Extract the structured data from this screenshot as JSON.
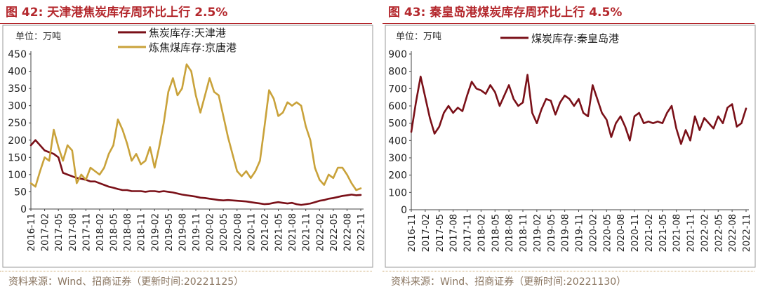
{
  "colors": {
    "title": "#b4282d",
    "coke_tianjin": "#7a1018",
    "met_jingtang": "#c9a23a",
    "coal_qhd": "#7a1018",
    "source": "#8a7560",
    "frame": "#999999"
  },
  "left": {
    "title": "图 42:  天津港焦炭库存周环比上行 2.5%",
    "unit": "单位：万吨",
    "source": "资料来源：Wind、招商证券（更新时间:20221125）"
  },
  "right": {
    "title": "图 43:  秦皇岛港煤炭库存周环比上行 4.5%",
    "unit": "单位：万吨",
    "source": "资料来源：Wind、招商证券（更新时间:20221130）"
  },
  "chart_data": [
    {
      "type": "line",
      "x_range": [
        "2016-11",
        "2022-11"
      ],
      "x_ticks": [
        "2016-11",
        "2017-02",
        "2017-05",
        "2017-08",
        "2017-11",
        "2018-02",
        "2018-05",
        "2018-08",
        "2018-11",
        "2019-02",
        "2019-05",
        "2019-08",
        "2019-11",
        "2020-02",
        "2020-05",
        "2020-08",
        "2020-11",
        "2021-02",
        "2021-05",
        "2021-08",
        "2021-11",
        "2022-02",
        "2022-05",
        "2022-08",
        "2022-11"
      ],
      "ylim": [
        0,
        450
      ],
      "y_ticks": [
        0,
        50,
        100,
        150,
        200,
        250,
        300,
        350,
        400,
        450
      ],
      "grid": false,
      "legend_position": "top",
      "series": [
        {
          "name": "焦炭库存:天津港",
          "color": "#7a1018",
          "points": [
            [
              "2016-11",
              185
            ],
            [
              "2016-12",
              200
            ],
            [
              "2017-01",
              185
            ],
            [
              "2017-02",
              170
            ],
            [
              "2017-03",
              165
            ],
            [
              "2017-04",
              160
            ],
            [
              "2017-05",
              150
            ],
            [
              "2017-06",
              105
            ],
            [
              "2017-07",
              100
            ],
            [
              "2017-08",
              95
            ],
            [
              "2017-09",
              90
            ],
            [
              "2017-10",
              88
            ],
            [
              "2017-11",
              85
            ],
            [
              "2017-12",
              80
            ],
            [
              "2018-01",
              80
            ],
            [
              "2018-02",
              75
            ],
            [
              "2018-03",
              70
            ],
            [
              "2018-04",
              65
            ],
            [
              "2018-05",
              62
            ],
            [
              "2018-06",
              58
            ],
            [
              "2018-07",
              55
            ],
            [
              "2018-08",
              55
            ],
            [
              "2018-09",
              52
            ],
            [
              "2018-10",
              52
            ],
            [
              "2018-11",
              52
            ],
            [
              "2018-12",
              50
            ],
            [
              "2019-01",
              52
            ],
            [
              "2019-02",
              52
            ],
            [
              "2019-03",
              50
            ],
            [
              "2019-04",
              52
            ],
            [
              "2019-05",
              50
            ],
            [
              "2019-06",
              48
            ],
            [
              "2019-07",
              45
            ],
            [
              "2019-08",
              42
            ],
            [
              "2019-09",
              40
            ],
            [
              "2019-10",
              38
            ],
            [
              "2019-11",
              36
            ],
            [
              "2019-12",
              33
            ],
            [
              "2020-01",
              32
            ],
            [
              "2020-02",
              30
            ],
            [
              "2020-03",
              28
            ],
            [
              "2020-04",
              26
            ],
            [
              "2020-05",
              25
            ],
            [
              "2020-06",
              26
            ],
            [
              "2020-07",
              25
            ],
            [
              "2020-08",
              24
            ],
            [
              "2020-09",
              23
            ],
            [
              "2020-10",
              22
            ],
            [
              "2020-11",
              20
            ],
            [
              "2020-12",
              18
            ],
            [
              "2021-01",
              16
            ],
            [
              "2021-02",
              14
            ],
            [
              "2021-03",
              15
            ],
            [
              "2021-04",
              18
            ],
            [
              "2021-05",
              20
            ],
            [
              "2021-06",
              18
            ],
            [
              "2021-07",
              16
            ],
            [
              "2021-08",
              18
            ],
            [
              "2021-09",
              14
            ],
            [
              "2021-10",
              12
            ],
            [
              "2021-11",
              14
            ],
            [
              "2021-12",
              16
            ],
            [
              "2022-01",
              20
            ],
            [
              "2022-02",
              24
            ],
            [
              "2022-03",
              26
            ],
            [
              "2022-04",
              30
            ],
            [
              "2022-05",
              32
            ],
            [
              "2022-06",
              35
            ],
            [
              "2022-07",
              38
            ],
            [
              "2022-08",
              40
            ],
            [
              "2022-09",
              42
            ],
            [
              "2022-10",
              40
            ],
            [
              "2022-11",
              41
            ]
          ]
        },
        {
          "name": "炼焦煤库存:京唐港",
          "color": "#c9a23a",
          "points": [
            [
              "2016-11",
              75
            ],
            [
              "2016-12",
              65
            ],
            [
              "2017-01",
              110
            ],
            [
              "2017-02",
              150
            ],
            [
              "2017-03",
              140
            ],
            [
              "2017-04",
              230
            ],
            [
              "2017-05",
              180
            ],
            [
              "2017-06",
              140
            ],
            [
              "2017-07",
              185
            ],
            [
              "2017-08",
              170
            ],
            [
              "2017-09",
              75
            ],
            [
              "2017-10",
              100
            ],
            [
              "2017-11",
              85
            ],
            [
              "2017-12",
              120
            ],
            [
              "2018-01",
              110
            ],
            [
              "2018-02",
              100
            ],
            [
              "2018-03",
              120
            ],
            [
              "2018-04",
              160
            ],
            [
              "2018-05",
              185
            ],
            [
              "2018-06",
              260
            ],
            [
              "2018-07",
              230
            ],
            [
              "2018-08",
              190
            ],
            [
              "2018-09",
              140
            ],
            [
              "2018-10",
              160
            ],
            [
              "2018-11",
              130
            ],
            [
              "2018-12",
              140
            ],
            [
              "2019-01",
              180
            ],
            [
              "2019-02",
              120
            ],
            [
              "2019-03",
              180
            ],
            [
              "2019-04",
              250
            ],
            [
              "2019-05",
              340
            ],
            [
              "2019-06",
              380
            ],
            [
              "2019-07",
              330
            ],
            [
              "2019-08",
              350
            ],
            [
              "2019-09",
              420
            ],
            [
              "2019-10",
              400
            ],
            [
              "2019-11",
              330
            ],
            [
              "2019-12",
              280
            ],
            [
              "2020-01",
              330
            ],
            [
              "2020-02",
              380
            ],
            [
              "2020-03",
              340
            ],
            [
              "2020-04",
              330
            ],
            [
              "2020-05",
              270
            ],
            [
              "2020-06",
              210
            ],
            [
              "2020-07",
              160
            ],
            [
              "2020-08",
              110
            ],
            [
              "2020-09",
              95
            ],
            [
              "2020-10",
              110
            ],
            [
              "2020-11",
              90
            ],
            [
              "2020-12",
              110
            ],
            [
              "2021-01",
              140
            ],
            [
              "2021-02",
              240
            ],
            [
              "2021-03",
              345
            ],
            [
              "2021-04",
              320
            ],
            [
              "2021-05",
              270
            ],
            [
              "2021-06",
              280
            ],
            [
              "2021-07",
              310
            ],
            [
              "2021-08",
              300
            ],
            [
              "2021-09",
              310
            ],
            [
              "2021-10",
              300
            ],
            [
              "2021-11",
              240
            ],
            [
              "2021-12",
              200
            ],
            [
              "2022-01",
              120
            ],
            [
              "2022-02",
              85
            ],
            [
              "2022-03",
              70
            ],
            [
              "2022-04",
              100
            ],
            [
              "2022-05",
              90
            ],
            [
              "2022-06",
              120
            ],
            [
              "2022-07",
              120
            ],
            [
              "2022-08",
              100
            ],
            [
              "2022-09",
              75
            ],
            [
              "2022-10",
              55
            ],
            [
              "2022-11",
              60
            ]
          ]
        }
      ]
    },
    {
      "type": "line",
      "x_range": [
        "2016-11",
        "2022-11"
      ],
      "x_ticks": [
        "2016-11",
        "2017-02",
        "2017-05",
        "2017-08",
        "2017-11",
        "2018-02",
        "2018-05",
        "2018-08",
        "2018-11",
        "2019-02",
        "2019-05",
        "2019-08",
        "2019-11",
        "2020-02",
        "2020-05",
        "2020-08",
        "2020-11",
        "2021-02",
        "2021-05",
        "2021-08",
        "2021-11",
        "2022-02",
        "2022-05",
        "2022-08",
        "2022-11"
      ],
      "ylim": [
        0,
        900
      ],
      "y_ticks": [
        0,
        100,
        200,
        300,
        400,
        500,
        600,
        700,
        800,
        900
      ],
      "grid": false,
      "legend_position": "top",
      "series": [
        {
          "name": "煤炭库存:秦皇岛港",
          "color": "#7a1018",
          "points": [
            [
              "2016-11",
              450
            ],
            [
              "2016-12",
              620
            ],
            [
              "2017-01",
              770
            ],
            [
              "2017-02",
              650
            ],
            [
              "2017-03",
              530
            ],
            [
              "2017-04",
              440
            ],
            [
              "2017-05",
              480
            ],
            [
              "2017-06",
              560
            ],
            [
              "2017-07",
              600
            ],
            [
              "2017-08",
              560
            ],
            [
              "2017-09",
              590
            ],
            [
              "2017-10",
              570
            ],
            [
              "2017-11",
              660
            ],
            [
              "2017-12",
              740
            ],
            [
              "2018-01",
              700
            ],
            [
              "2018-02",
              690
            ],
            [
              "2018-03",
              670
            ],
            [
              "2018-04",
              720
            ],
            [
              "2018-05",
              680
            ],
            [
              "2018-06",
              600
            ],
            [
              "2018-07",
              660
            ],
            [
              "2018-08",
              720
            ],
            [
              "2018-09",
              640
            ],
            [
              "2018-10",
              600
            ],
            [
              "2018-11",
              620
            ],
            [
              "2018-12",
              780
            ],
            [
              "2019-01",
              560
            ],
            [
              "2019-02",
              500
            ],
            [
              "2019-03",
              580
            ],
            [
              "2019-04",
              640
            ],
            [
              "2019-05",
              630
            ],
            [
              "2019-06",
              550
            ],
            [
              "2019-07",
              620
            ],
            [
              "2019-08",
              660
            ],
            [
              "2019-09",
              640
            ],
            [
              "2019-10",
              600
            ],
            [
              "2019-11",
              640
            ],
            [
              "2019-12",
              560
            ],
            [
              "2020-01",
              540
            ],
            [
              "2020-02",
              720
            ],
            [
              "2020-03",
              640
            ],
            [
              "2020-04",
              560
            ],
            [
              "2020-05",
              520
            ],
            [
              "2020-06",
              420
            ],
            [
              "2020-07",
              500
            ],
            [
              "2020-08",
              540
            ],
            [
              "2020-09",
              480
            ],
            [
              "2020-10",
              400
            ],
            [
              "2020-11",
              540
            ],
            [
              "2020-12",
              560
            ],
            [
              "2021-01",
              500
            ],
            [
              "2021-02",
              510
            ],
            [
              "2021-03",
              500
            ],
            [
              "2021-04",
              510
            ],
            [
              "2021-05",
              500
            ],
            [
              "2021-06",
              560
            ],
            [
              "2021-07",
              600
            ],
            [
              "2021-08",
              470
            ],
            [
              "2021-09",
              380
            ],
            [
              "2021-10",
              460
            ],
            [
              "2021-11",
              400
            ],
            [
              "2021-12",
              540
            ],
            [
              "2022-01",
              460
            ],
            [
              "2022-02",
              530
            ],
            [
              "2022-03",
              500
            ],
            [
              "2022-04",
              470
            ],
            [
              "2022-05",
              540
            ],
            [
              "2022-06",
              500
            ],
            [
              "2022-07",
              590
            ],
            [
              "2022-08",
              610
            ],
            [
              "2022-09",
              480
            ],
            [
              "2022-10",
              500
            ],
            [
              "2022-11",
              585
            ]
          ]
        }
      ]
    }
  ]
}
